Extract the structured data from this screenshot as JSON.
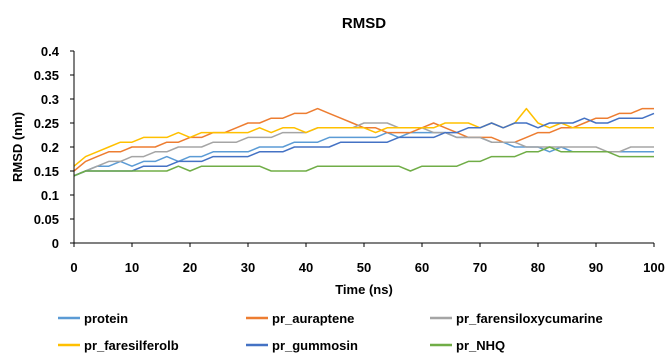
{
  "chart_data": {
    "type": "line",
    "title": "RMSD",
    "xlabel": "Time (ns)",
    "ylabel": "RMSD (nm)",
    "xlim": [
      0,
      100
    ],
    "ylim": [
      0,
      0.4
    ],
    "x_ticks": [
      "0",
      "10",
      "20",
      "30",
      "40",
      "50",
      "60",
      "70",
      "80",
      "90",
      "100"
    ],
    "y_ticks": [
      "0",
      "0.05",
      "0.1",
      "0.15",
      "0.2",
      "0.25",
      "0.3",
      "0.35",
      "0.4"
    ],
    "grid": false,
    "legend_position": "bottom",
    "x": [
      0,
      2,
      4,
      6,
      8,
      10,
      12,
      14,
      16,
      18,
      20,
      22,
      24,
      26,
      28,
      30,
      32,
      34,
      36,
      38,
      40,
      42,
      44,
      46,
      48,
      50,
      52,
      54,
      56,
      58,
      60,
      62,
      64,
      66,
      68,
      70,
      72,
      74,
      76,
      78,
      80,
      82,
      84,
      86,
      88,
      90,
      92,
      94,
      96,
      98,
      100
    ],
    "series": [
      {
        "name": "protein",
        "color": "#5B9BD5",
        "values": [
          0.14,
          0.15,
          0.16,
          0.16,
          0.17,
          0.16,
          0.17,
          0.17,
          0.18,
          0.17,
          0.18,
          0.18,
          0.19,
          0.19,
          0.19,
          0.19,
          0.2,
          0.2,
          0.2,
          0.21,
          0.21,
          0.21,
          0.22,
          0.22,
          0.22,
          0.22,
          0.22,
          0.23,
          0.22,
          0.23,
          0.23,
          0.23,
          0.23,
          0.22,
          0.22,
          0.22,
          0.21,
          0.21,
          0.2,
          0.2,
          0.2,
          0.19,
          0.2,
          0.19,
          0.19,
          0.19,
          0.19,
          0.19,
          0.19,
          0.19,
          0.19
        ]
      },
      {
        "name": "pr_auraptene",
        "color": "#ED7D31",
        "values": [
          0.15,
          0.17,
          0.18,
          0.19,
          0.19,
          0.2,
          0.2,
          0.2,
          0.21,
          0.21,
          0.22,
          0.22,
          0.23,
          0.23,
          0.24,
          0.25,
          0.25,
          0.26,
          0.26,
          0.27,
          0.27,
          0.28,
          0.27,
          0.26,
          0.25,
          0.24,
          0.24,
          0.23,
          0.23,
          0.23,
          0.24,
          0.25,
          0.24,
          0.23,
          0.22,
          0.22,
          0.22,
          0.21,
          0.21,
          0.22,
          0.23,
          0.23,
          0.24,
          0.24,
          0.25,
          0.26,
          0.26,
          0.27,
          0.27,
          0.28,
          0.28
        ]
      },
      {
        "name": "pr_farensiloxycumarine",
        "color": "#A5A5A5",
        "values": [
          0.14,
          0.15,
          0.16,
          0.17,
          0.17,
          0.18,
          0.18,
          0.19,
          0.19,
          0.2,
          0.2,
          0.2,
          0.21,
          0.21,
          0.21,
          0.22,
          0.22,
          0.22,
          0.23,
          0.23,
          0.23,
          0.24,
          0.24,
          0.24,
          0.24,
          0.25,
          0.25,
          0.25,
          0.24,
          0.24,
          0.24,
          0.23,
          0.23,
          0.22,
          0.22,
          0.22,
          0.21,
          0.21,
          0.21,
          0.2,
          0.2,
          0.2,
          0.2,
          0.2,
          0.2,
          0.2,
          0.19,
          0.19,
          0.2,
          0.2,
          0.2
        ]
      },
      {
        "name": "pr_faresilferolb",
        "color": "#FFC000",
        "values": [
          0.16,
          0.18,
          0.19,
          0.2,
          0.21,
          0.21,
          0.22,
          0.22,
          0.22,
          0.23,
          0.22,
          0.23,
          0.23,
          0.23,
          0.23,
          0.23,
          0.24,
          0.23,
          0.24,
          0.24,
          0.23,
          0.24,
          0.24,
          0.24,
          0.24,
          0.24,
          0.23,
          0.24,
          0.24,
          0.24,
          0.24,
          0.24,
          0.25,
          0.25,
          0.25,
          0.24,
          0.25,
          0.24,
          0.25,
          0.28,
          0.25,
          0.24,
          0.25,
          0.24,
          0.24,
          0.24,
          0.24,
          0.24,
          0.24,
          0.24,
          0.24
        ]
      },
      {
        "name": "pr_gummosin",
        "color": "#4472C4",
        "values": [
          0.14,
          0.15,
          0.15,
          0.15,
          0.15,
          0.15,
          0.16,
          0.16,
          0.16,
          0.17,
          0.17,
          0.17,
          0.18,
          0.18,
          0.18,
          0.18,
          0.19,
          0.19,
          0.19,
          0.2,
          0.2,
          0.2,
          0.2,
          0.21,
          0.21,
          0.21,
          0.21,
          0.21,
          0.22,
          0.22,
          0.22,
          0.22,
          0.23,
          0.23,
          0.24,
          0.24,
          0.25,
          0.24,
          0.25,
          0.25,
          0.24,
          0.25,
          0.25,
          0.25,
          0.26,
          0.25,
          0.25,
          0.26,
          0.26,
          0.26,
          0.27
        ]
      },
      {
        "name": "pr_NHQ",
        "color": "#70AD47",
        "values": [
          0.14,
          0.15,
          0.15,
          0.15,
          0.15,
          0.15,
          0.15,
          0.15,
          0.15,
          0.16,
          0.15,
          0.16,
          0.16,
          0.16,
          0.16,
          0.16,
          0.16,
          0.15,
          0.15,
          0.15,
          0.15,
          0.16,
          0.16,
          0.16,
          0.16,
          0.16,
          0.16,
          0.16,
          0.16,
          0.15,
          0.16,
          0.16,
          0.16,
          0.16,
          0.17,
          0.17,
          0.18,
          0.18,
          0.18,
          0.19,
          0.19,
          0.2,
          0.19,
          0.19,
          0.19,
          0.19,
          0.19,
          0.18,
          0.18,
          0.18,
          0.18
        ]
      }
    ]
  }
}
